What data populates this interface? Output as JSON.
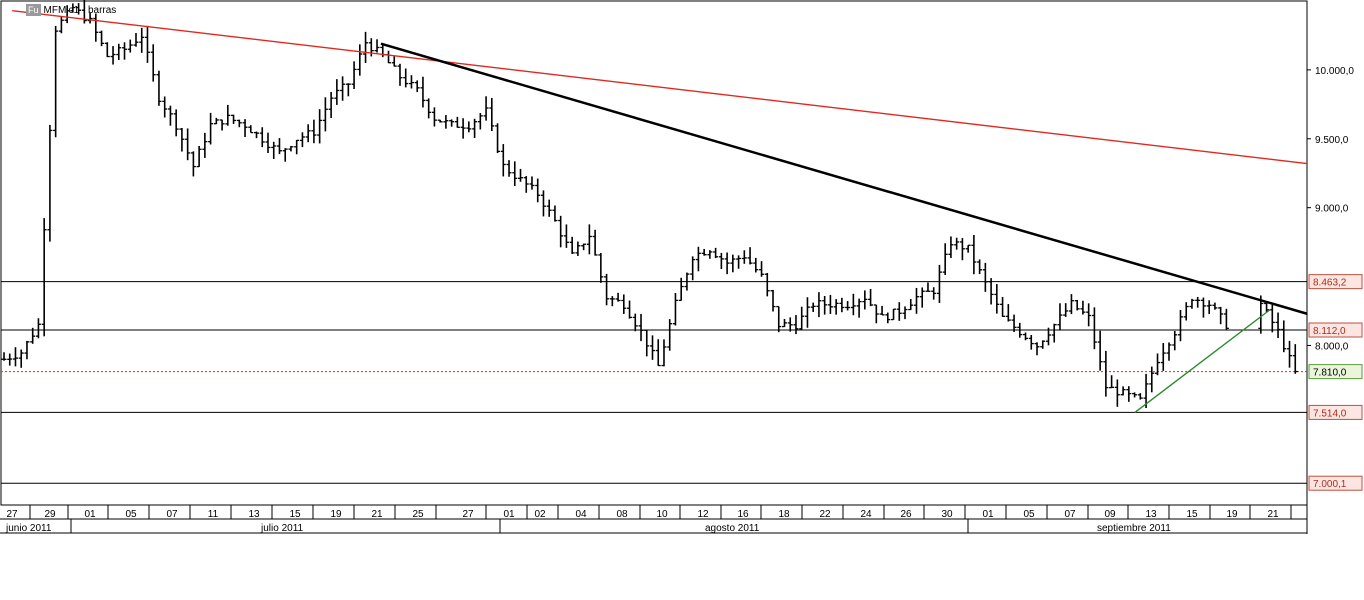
{
  "chart_label": {
    "badge": "Fu",
    "name": "MFMic1 - barras"
  },
  "colors": {
    "bar": "#000000",
    "trend_upper": "#e0281e",
    "trend_lower": "#000000",
    "trend_green": "#2a8a2a",
    "last_price_line": "#e0281e",
    "last_price_box": "#eaf5dc",
    "level_box": "#fbe6e2",
    "grid": "#d0d0d0"
  },
  "chart_data": {
    "type": "bar",
    "title": "MFMic1 - barras",
    "ylim": [
      6900,
      10500
    ],
    "y_ticks": [
      "10.000,0",
      "9.500,0",
      "9.000,0",
      "8.000,0"
    ],
    "y_tick_values": [
      10000,
      9500,
      9000,
      8000
    ],
    "levels": [
      {
        "label": "8.463,2",
        "value": 8463.2,
        "style": "solid"
      },
      {
        "label": "8.112,0",
        "value": 8112.0,
        "style": "solid"
      },
      {
        "label": "7.514,0",
        "value": 7514.0,
        "style": "solid"
      },
      {
        "label": "7.000,1",
        "value": 7000.1,
        "style": "solid"
      },
      {
        "label": "7.810,0",
        "value": 7810.0,
        "style": "last"
      }
    ],
    "x_tick_labels": [
      "27",
      "29",
      "01",
      "05",
      "07",
      "11",
      "13",
      "15",
      "19",
      "21",
      "25",
      "27",
      "01",
      "02",
      "04",
      "08",
      "10",
      "12",
      "16",
      "18",
      "22",
      "24",
      "26",
      "30",
      "01",
      "05",
      "07",
      "09",
      "13",
      "15",
      "19",
      "21"
    ],
    "month_labels": [
      "junio 2011",
      "julio 2011",
      "agosto 2011",
      "septiembre 2011"
    ],
    "trendlines": [
      {
        "name": "upper",
        "from": [
          2,
          10430
        ],
        "to": [
          318,
          9320
        ]
      },
      {
        "name": "lower",
        "from": [
          92,
          10190
        ],
        "to": [
          318,
          8230
        ]
      },
      {
        "name": "green",
        "from": [
          276,
          7514
        ],
        "to": [
          309,
          8260
        ]
      }
    ],
    "ohlc": [
      [
        7800,
        7900,
        7850
      ],
      [
        7850,
        7950,
        7900
      ],
      [
        7900,
        7950,
        7800
      ],
      [
        7850,
        8000,
        7950
      ],
      [
        8000,
        8100,
        8050
      ],
      [
        8050,
        8150,
        8100
      ],
      [
        8100,
        8200,
        8150
      ],
      [
        8150,
        8300,
        8250
      ],
      [
        8250,
        8400,
        8350
      ],
      [
        8350,
        8450,
        8400
      ],
      [
        8400,
        8500,
        8450
      ],
      [
        8450,
        8550,
        8500
      ]
    ]
  }
}
